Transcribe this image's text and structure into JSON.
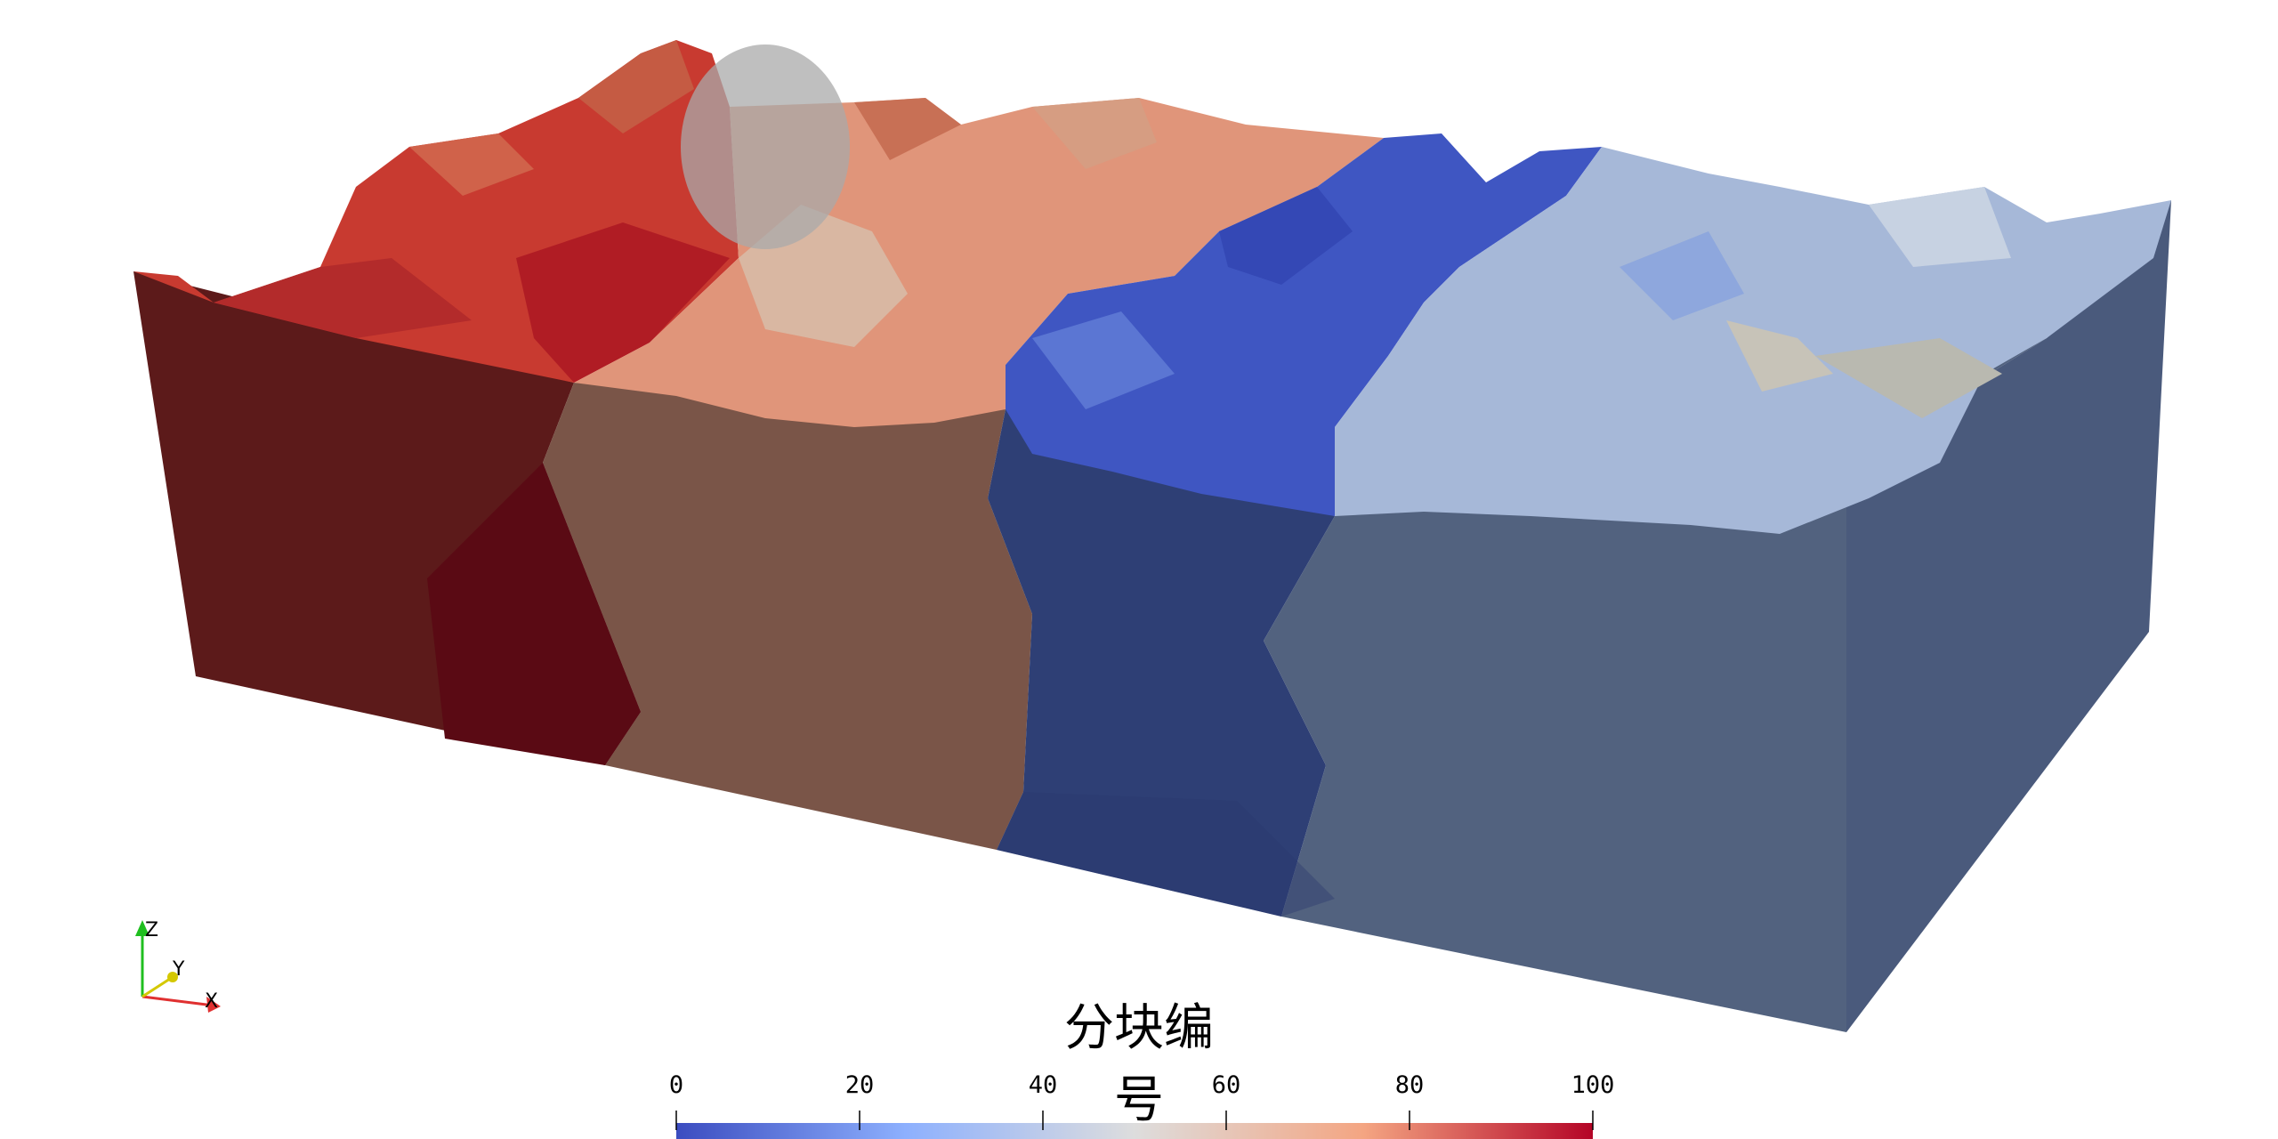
{
  "scalar_bar": {
    "title": "分块编号",
    "range": [
      0,
      100
    ],
    "ticks": [
      "0",
      "20",
      "40",
      "60",
      "80",
      "100"
    ],
    "colormap": "cool to warm",
    "colors": [
      "#3b4cc0",
      "#8db0fe",
      "#dddddd",
      "#f4a582",
      "#b40426"
    ]
  },
  "orientation_axes": {
    "x_label": "X",
    "y_label": "Y",
    "z_label": "Z",
    "x_color": "#e03030",
    "y_color": "#d4c800",
    "z_color": "#1fbf1f"
  },
  "partitions": {
    "front_face_colors": [
      "#5c1a1a",
      "#7a5548",
      "#2e3f75",
      "#52627f"
    ],
    "side_face_color": "#4a5a7c",
    "top_colors": [
      "#c83a30",
      "#e0957a",
      "#3f56c2",
      "#a6b8d8"
    ],
    "ellipsoid_color": "#a9a9a9"
  }
}
